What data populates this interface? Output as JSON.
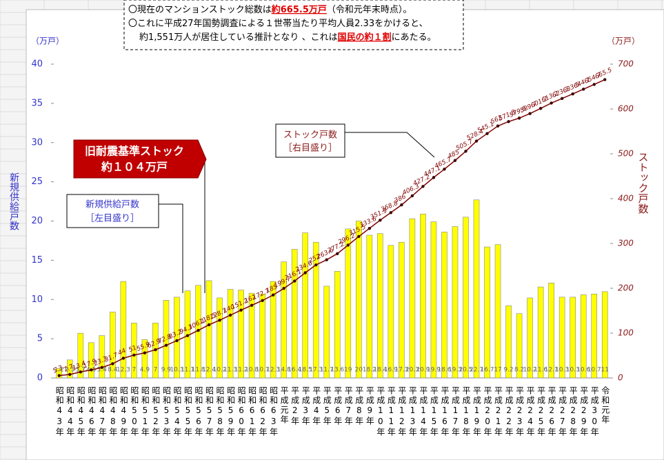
{
  "chart_data": {
    "type": "bar",
    "note": {
      "lines": [
        [
          {
            "text": "〇現在のマンションストック総数は"
          },
          {
            "text": "約665.5万戸",
            "highlight": true
          },
          {
            "text": "（令和元年末時点）。"
          }
        ],
        [
          {
            "text": "〇これに平成27年国勢調査による１世帯当たり平均人員2.33をかけると、"
          }
        ],
        [
          {
            "text": "約1,551万人が居住している推計となり 、これは"
          },
          {
            "text": "国民の約１割",
            "highlight": true
          },
          {
            "text": "にあたる。"
          }
        ]
      ]
    },
    "ylabel": "新規供給戸数",
    "yunit": "（万戸）",
    "y2label": "ストック戸数",
    "y2unit": "（万戸）",
    "callouts": {
      "old_standard": [
        "旧耐震基準ストック",
        "約１０４万戸"
      ],
      "supply": [
        "新規供給戸数",
        "［左目盛り］"
      ],
      "stock": [
        "ストック戸数",
        "［右目盛り］"
      ]
    },
    "categories": [
      "昭和43年",
      "昭和44年",
      "昭和45年",
      "昭和46年",
      "昭和47年",
      "昭和48年",
      "昭和49年",
      "昭和50年",
      "昭和51年",
      "昭和52年",
      "昭和53年",
      "昭和54年",
      "昭和55年",
      "昭和56年",
      "昭和57年",
      "昭和58年",
      "昭和59年",
      "昭和60年",
      "昭和61年",
      "昭和62年",
      "昭和63年",
      "平成元年",
      "平成2年",
      "平成3年",
      "平成4年",
      "平成5年",
      "平成6年",
      "平成7年",
      "平成8年",
      "平成9年",
      "平成10年",
      "平成11年",
      "平成12年",
      "平成13年",
      "平成14年",
      "平成15年",
      "平成16年",
      "平成17年",
      "平成18年",
      "平成19年",
      "平成20年",
      "平成21年",
      "平成22年",
      "平成23年",
      "平成24年",
      "平成25年",
      "平成26年",
      "平成27年",
      "平成28年",
      "平成29年",
      "平成30年",
      "令和元年"
    ],
    "series": [
      {
        "name": "新規供給戸数",
        "type": "bar",
        "color": "#ffff00",
        "values": [
          1.2,
          2.3,
          5.7,
          4.5,
          5.4,
          8.4,
          12.3,
          7.0,
          4.9,
          7.0,
          9.9,
          10.3,
          11.1,
          11.8,
          12.4,
          10.2,
          11.3,
          11.2,
          10.8,
          10.7,
          12.3,
          14.8,
          16.4,
          18.5,
          17.3,
          11.7,
          13.6,
          19.0,
          20.0,
          18.2,
          18.4,
          16.9,
          17.3,
          20.3,
          20.9,
          19.9,
          18.6,
          19.3,
          20.5,
          22.7,
          16.7,
          17.0,
          9.2,
          8.2,
          10.2,
          11.6,
          12.1,
          10.3,
          10.3,
          10.6,
          10.7,
          11.0
        ]
      },
      {
        "name": "ストック戸数",
        "type": "line",
        "axis": "y2",
        "color": "#800000",
        "values": [
          5.3,
          7.7,
          13.4,
          17.9,
          23.3,
          31.7,
          44.0,
          51.0,
          55.9,
          62.9,
          72.8,
          83.2,
          94.3,
          106.1,
          118.5,
          128.7,
          140.0,
          151.2,
          162.0,
          172.7,
          185.0,
          199.7,
          216.1,
          234.6,
          252.0,
          263.6,
          277.2,
          296.2,
          315.5,
          333.6,
          351.9,
          368.8,
          386.0,
          406.3,
          427.2,
          447.1,
          465.7,
          485.0,
          505.7,
          528.4,
          545.1,
          562.0,
          571.8,
          579.6,
          589.7,
          601.2,
          613.2,
          623.3,
          633.5,
          644.1,
          654.7,
          665.5
        ]
      }
    ],
    "ylim": [
      0,
      40
    ],
    "yticks": [
      0,
      5,
      10,
      15,
      20,
      25,
      30,
      35,
      40
    ],
    "y2lim": [
      0,
      700
    ],
    "y2ticks": [
      0,
      100,
      200,
      300,
      400,
      500,
      600,
      700
    ]
  }
}
